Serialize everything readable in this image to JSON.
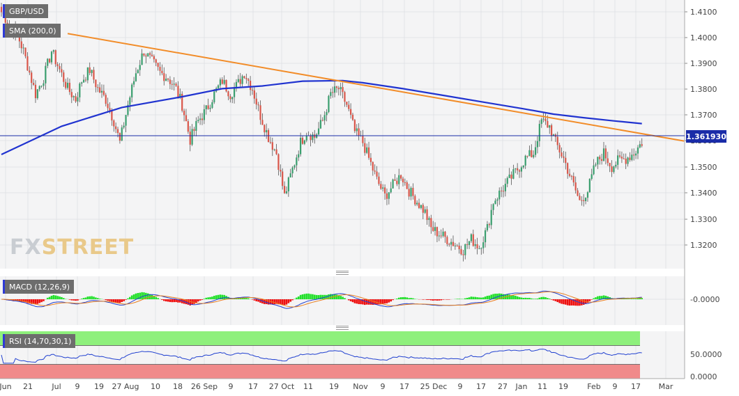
{
  "chart_data": [
    {
      "type": "candlestick",
      "symbol": "GBP/USD",
      "indicator": "SMA (200,0)",
      "last_price": "1.361930",
      "y_ticks": [
        "1.4100",
        "1.4000",
        "1.3900",
        "1.3800",
        "1.3700",
        "1.3600",
        "1.3500",
        "1.3400",
        "1.3300",
        "1.3200"
      ],
      "ylim": [
        1.315,
        1.415
      ],
      "x_ticks": [
        "Jun",
        "21",
        "Jul",
        "9",
        "19",
        "27 Aug",
        "10",
        "18",
        "26 Sep",
        "9",
        "17",
        "27 Oct",
        "11",
        "19",
        "Nov",
        "9",
        "17",
        "25 Dec",
        "9",
        "17",
        "27",
        "Jan",
        "11",
        "19",
        "Feb",
        "9",
        "17",
        "Mar"
      ],
      "close_path": [
        [
          0,
          1.4105
        ],
        [
          4,
          1.406
        ],
        [
          8,
          1.402
        ],
        [
          11,
          1.396
        ],
        [
          14,
          1.388
        ],
        [
          17,
          1.38
        ],
        [
          21,
          1.386
        ],
        [
          25,
          1.396
        ],
        [
          29,
          1.389
        ],
        [
          33,
          1.382
        ],
        [
          37,
          1.378
        ],
        [
          40,
          1.385
        ],
        [
          44,
          1.389
        ],
        [
          48,
          1.382
        ],
        [
          52,
          1.378
        ],
        [
          56,
          1.37
        ],
        [
          59,
          1.362
        ],
        [
          63,
          1.376
        ],
        [
          67,
          1.388
        ],
        [
          71,
          1.396
        ],
        [
          75,
          1.392
        ],
        [
          79,
          1.388
        ],
        [
          83,
          1.386
        ],
        [
          87,
          1.382
        ],
        [
          90,
          1.376
        ],
        [
          94,
          1.363
        ],
        [
          98,
          1.37
        ],
        [
          102,
          1.374
        ],
        [
          106,
          1.38
        ],
        [
          110,
          1.385
        ],
        [
          114,
          1.38
        ],
        [
          118,
          1.384
        ],
        [
          121,
          1.388
        ],
        [
          125,
          1.382
        ],
        [
          129,
          1.372
        ],
        [
          133,
          1.364
        ],
        [
          137,
          1.358
        ],
        [
          141,
          1.342
        ],
        [
          145,
          1.352
        ],
        [
          149,
          1.362
        ],
        [
          152,
          1.366
        ],
        [
          156,
          1.364
        ],
        [
          160,
          1.37
        ],
        [
          164,
          1.38
        ],
        [
          168,
          1.382
        ],
        [
          172,
          1.376
        ],
        [
          176,
          1.366
        ],
        [
          180,
          1.362
        ],
        [
          183,
          1.356
        ],
        [
          187,
          1.348
        ],
        [
          191,
          1.342
        ],
        [
          195,
          1.346
        ],
        [
          199,
          1.35
        ],
        [
          203,
          1.344
        ],
        [
          207,
          1.34
        ],
        [
          211,
          1.336
        ],
        [
          214,
          1.33
        ],
        [
          218,
          1.328
        ],
        [
          222,
          1.326
        ],
        [
          226,
          1.324
        ],
        [
          230,
          1.322
        ],
        [
          234,
          1.326
        ],
        [
          238,
          1.323
        ],
        [
          242,
          1.33
        ],
        [
          245,
          1.34
        ],
        [
          249,
          1.344
        ],
        [
          253,
          1.348
        ],
        [
          257,
          1.352
        ],
        [
          261,
          1.356
        ],
        [
          265,
          1.358
        ],
        [
          269,
          1.37
        ],
        [
          273,
          1.368
        ],
        [
          276,
          1.362
        ],
        [
          280,
          1.356
        ],
        [
          284,
          1.348
        ],
        [
          288,
          1.34
        ],
        [
          292,
          1.344
        ],
        [
          296,
          1.354
        ],
        [
          300,
          1.358
        ],
        [
          304,
          1.353
        ],
        [
          307,
          1.355
        ],
        [
          311,
          1.356
        ],
        [
          315,
          1.358
        ],
        [
          319,
          1.362
        ]
      ],
      "sma_200": [
        [
          0,
          1.3575
        ],
        [
          30,
          1.368
        ],
        [
          60,
          1.375
        ],
        [
          90,
          1.379
        ],
        [
          110,
          1.382
        ],
        [
          130,
          1.383
        ],
        [
          150,
          1.3848
        ],
        [
          170,
          1.385
        ],
        [
          180,
          1.3842
        ],
        [
          200,
          1.382
        ],
        [
          220,
          1.3795
        ],
        [
          240,
          1.377
        ],
        [
          260,
          1.3745
        ],
        [
          275,
          1.3725
        ],
        [
          290,
          1.3712
        ],
        [
          305,
          1.37
        ],
        [
          319,
          1.369
        ]
      ],
      "trendline": [
        [
          33,
          1.4025
        ],
        [
          340,
          1.3625
        ]
      ],
      "title": "",
      "xlabel": "",
      "ylabel": "",
      "grid": true
    },
    {
      "type": "histogram",
      "indicator": "MACD (12,26,9)",
      "y_ticks": [
        "-0.0000"
      ],
      "grid": true
    },
    {
      "type": "line",
      "indicator": "RSI (14,70,30,1)",
      "y_ticks": [
        "50.0000",
        "0.0000"
      ],
      "overbought": 70,
      "oversold": 30,
      "grid": true
    }
  ],
  "colors": {
    "bull": "#3a9e6e",
    "bear": "#d9564a",
    "sma": "#2033d0",
    "trendline": "#f28c28",
    "macd_pos": "#22e02a",
    "macd_neg": "#ee1111",
    "macd_line": "#2040d0",
    "signal_line": "#e88020",
    "rsi_line": "#2040d0",
    "overbought_zone": "#8ef07c",
    "oversold_zone": "#f08a8a"
  },
  "watermark": {
    "part1": "FX",
    "part2": "STREET"
  }
}
